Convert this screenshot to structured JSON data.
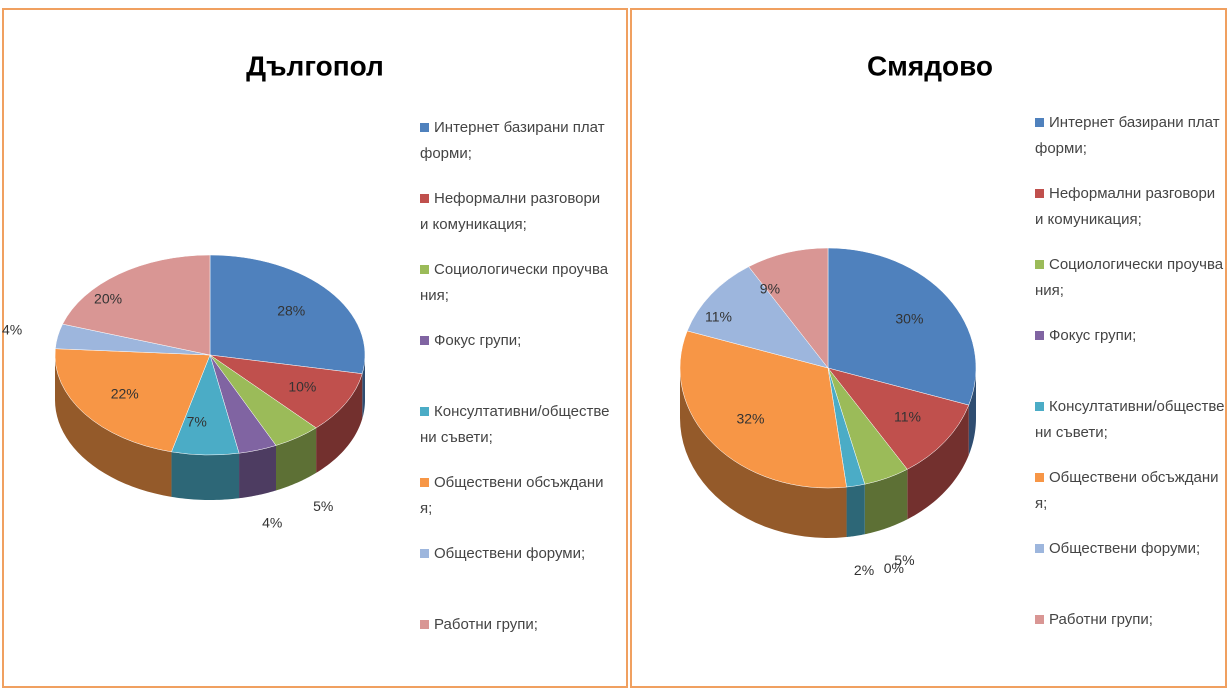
{
  "chart_data": [
    {
      "type": "pie",
      "title": "Дългопол",
      "categories": [
        "Интернет базирани платформи;",
        "Неформални разговори и комуникация;",
        "Социологически проучвания;",
        "Фокус групи;",
        "Консултативни/обществени съвети;",
        "Обществени обсъждания;",
        "Обществени форуми;",
        "Работни групи;"
      ],
      "values": [
        28,
        10,
        5,
        4,
        7,
        22,
        4,
        20
      ],
      "value_labels": [
        "28%",
        "10%",
        "5%",
        "4%",
        "7%",
        "22%",
        "4%",
        "20%"
      ],
      "colors": [
        "#4f81bd",
        "#c0504d",
        "#9bbb59",
        "#8064a2",
        "#4bacc6",
        "#f79646",
        "#9db6dd",
        "#d99694"
      ],
      "legend": "right"
    },
    {
      "type": "pie",
      "title": "Смядово",
      "categories": [
        "Интернет базирани платформи;",
        "Неформални разговори и комуникация;",
        "Социологически проучвания;",
        "Фокус групи;",
        "Консултативни/обществени съвети;",
        "Обществени обсъждания;",
        "Обществени форуми;",
        "Работни групи;"
      ],
      "values": [
        30,
        11,
        5,
        0,
        2,
        32,
        11,
        9
      ],
      "value_labels": [
        "30%",
        "11%",
        "5%",
        "0%",
        "2%",
        "32%",
        "11%",
        "9%"
      ],
      "colors": [
        "#4f81bd",
        "#c0504d",
        "#9bbb59",
        "#8064a2",
        "#4bacc6",
        "#f79646",
        "#9db6dd",
        "#d99694"
      ],
      "legend": "right"
    }
  ]
}
